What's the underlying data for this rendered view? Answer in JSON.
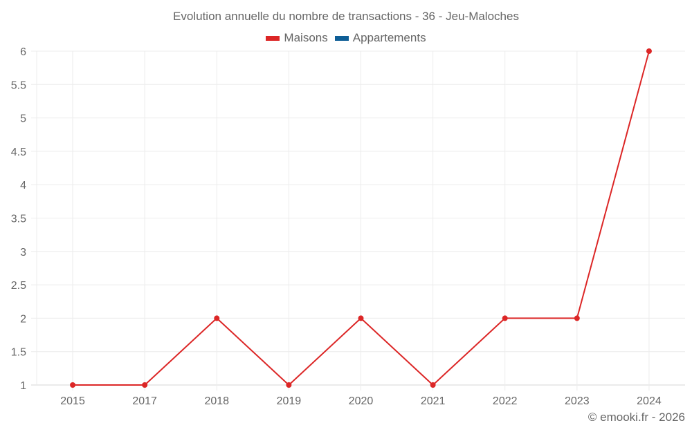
{
  "chart_data": {
    "type": "line",
    "title": "Evolution annuelle du nombre de transactions - 36 - Jeu-Maloches",
    "categories": [
      "2015",
      "2017",
      "2018",
      "2019",
      "2020",
      "2021",
      "2022",
      "2023",
      "2024"
    ],
    "series": [
      {
        "name": "Maisons",
        "color": "#dc2626",
        "values": [
          1,
          1,
          2,
          1,
          2,
          1,
          2,
          2,
          6
        ]
      },
      {
        "name": "Appartements",
        "color": "#0e5e96",
        "values": []
      }
    ],
    "xlabel": "",
    "ylabel": "",
    "ylim": [
      1,
      6
    ],
    "yticks": [
      "1",
      "1.5",
      "2",
      "2.5",
      "3",
      "3.5",
      "4",
      "4.5",
      "5",
      "5.5",
      "6"
    ],
    "grid": true,
    "legend_position": "top"
  },
  "legend": {
    "items": [
      {
        "label": "Maisons",
        "color": "#dc2626"
      },
      {
        "label": "Appartements",
        "color": "#0e5e96"
      }
    ]
  },
  "credit": "© emooki.fr - 2026"
}
